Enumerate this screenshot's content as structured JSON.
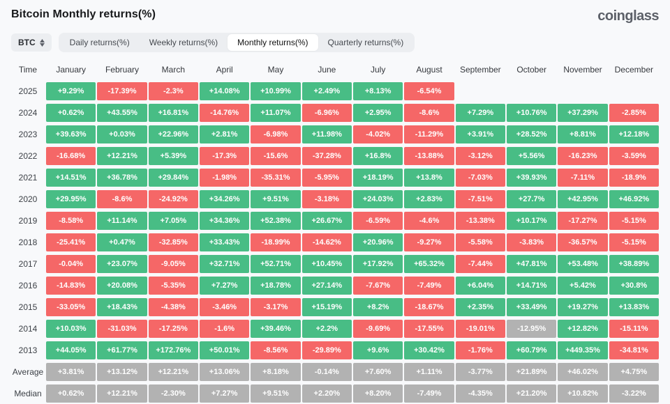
{
  "header": {
    "title": "Bitcoin Monthly returns(%)",
    "logo": "coinglass"
  },
  "toolbar": {
    "symbol_select": "BTC",
    "tabs": [
      {
        "label": "Daily returns(%)",
        "active": false
      },
      {
        "label": "Weekly returns(%)",
        "active": false
      },
      {
        "label": "Monthly returns(%)",
        "active": true
      },
      {
        "label": "Quarterly returns(%)",
        "active": false
      }
    ]
  },
  "colors": {
    "green": "#48bd85",
    "red": "#f56767",
    "gray": "#b2b2b2"
  },
  "chart_data": {
    "type": "heatmap",
    "title": "Bitcoin Monthly returns(%)",
    "columns": [
      "Time",
      "January",
      "February",
      "March",
      "April",
      "May",
      "June",
      "July",
      "August",
      "September",
      "October",
      "November",
      "December"
    ],
    "rows": [
      {
        "label": "2025",
        "values": [
          "+9.29%",
          "-17.39%",
          "-2.3%",
          "+14.08%",
          "+10.99%",
          "+2.49%",
          "+8.13%",
          "-6.54%",
          "",
          "",
          "",
          ""
        ]
      },
      {
        "label": "2024",
        "values": [
          "+0.62%",
          "+43.55%",
          "+16.81%",
          "-14.76%",
          "+11.07%",
          "-6.96%",
          "+2.95%",
          "-8.6%",
          "+7.29%",
          "+10.76%",
          "+37.29%",
          "-2.85%"
        ]
      },
      {
        "label": "2023",
        "values": [
          "+39.63%",
          "+0.03%",
          "+22.96%",
          "+2.81%",
          "-6.98%",
          "+11.98%",
          "-4.02%",
          "-11.29%",
          "+3.91%",
          "+28.52%",
          "+8.81%",
          "+12.18%"
        ]
      },
      {
        "label": "2022",
        "values": [
          "-16.68%",
          "+12.21%",
          "+5.39%",
          "-17.3%",
          "-15.6%",
          "-37.28%",
          "+16.8%",
          "-13.88%",
          "-3.12%",
          "+5.56%",
          "-16.23%",
          "-3.59%"
        ]
      },
      {
        "label": "2021",
        "values": [
          "+14.51%",
          "+36.78%",
          "+29.84%",
          "-1.98%",
          "-35.31%",
          "-5.95%",
          "+18.19%",
          "+13.8%",
          "-7.03%",
          "+39.93%",
          "-7.11%",
          "-18.9%"
        ]
      },
      {
        "label": "2020",
        "values": [
          "+29.95%",
          "-8.6%",
          "-24.92%",
          "+34.26%",
          "+9.51%",
          "-3.18%",
          "+24.03%",
          "+2.83%",
          "-7.51%",
          "+27.7%",
          "+42.95%",
          "+46.92%"
        ]
      },
      {
        "label": "2019",
        "values": [
          "-8.58%",
          "+11.14%",
          "+7.05%",
          "+34.36%",
          "+52.38%",
          "+26.67%",
          "-6.59%",
          "-4.6%",
          "-13.38%",
          "+10.17%",
          "-17.27%",
          "-5.15%"
        ]
      },
      {
        "label": "2018",
        "values": [
          "-25.41%",
          "+0.47%",
          "-32.85%",
          "+33.43%",
          "-18.99%",
          "-14.62%",
          "+20.96%",
          "-9.27%",
          "-5.58%",
          "-3.83%",
          "-36.57%",
          "-5.15%"
        ]
      },
      {
        "label": "2017",
        "values": [
          "-0.04%",
          "+23.07%",
          "-9.05%",
          "+32.71%",
          "+52.71%",
          "+10.45%",
          "+17.92%",
          "+65.32%",
          "-7.44%",
          "+47.81%",
          "+53.48%",
          "+38.89%"
        ]
      },
      {
        "label": "2016",
        "values": [
          "-14.83%",
          "+20.08%",
          "-5.35%",
          "+7.27%",
          "+18.78%",
          "+27.14%",
          "-7.67%",
          "-7.49%",
          "+6.04%",
          "+14.71%",
          "+5.42%",
          "+30.8%"
        ]
      },
      {
        "label": "2015",
        "values": [
          "-33.05%",
          "+18.43%",
          "-4.38%",
          "-3.46%",
          "-3.17%",
          "+15.19%",
          "+8.2%",
          "-18.67%",
          "+2.35%",
          "+33.49%",
          "+19.27%",
          "+13.83%"
        ]
      },
      {
        "label": "2014",
        "values": [
          "+10.03%",
          "-31.03%",
          "-17.25%",
          "-1.6%",
          "+39.46%",
          "+2.2%",
          "-9.69%",
          "-17.55%",
          "-19.01%",
          "-12.95%",
          "+12.82%",
          "-15.11%"
        ]
      },
      {
        "label": "2013",
        "values": [
          "+44.05%",
          "+61.77%",
          "+172.76%",
          "+50.01%",
          "-8.56%",
          "-29.89%",
          "+9.6%",
          "+30.42%",
          "-1.76%",
          "+60.79%",
          "+449.35%",
          "-34.81%"
        ]
      },
      {
        "label": "Average",
        "summary": true,
        "values": [
          "+3.81%",
          "+13.12%",
          "+12.21%",
          "+13.06%",
          "+8.18%",
          "-0.14%",
          "+7.60%",
          "+1.11%",
          "-3.77%",
          "+21.89%",
          "+46.02%",
          "+4.75%"
        ]
      },
      {
        "label": "Median",
        "summary": true,
        "values": [
          "+0.62%",
          "+12.21%",
          "-2.30%",
          "+7.27%",
          "+9.51%",
          "+2.20%",
          "+8.20%",
          "-7.49%",
          "-4.35%",
          "+21.20%",
          "+10.82%",
          "-3.22%"
        ]
      }
    ],
    "overrides": [
      {
        "row": "2014",
        "month": "October",
        "style": "gray"
      }
    ],
    "legend_position": "none",
    "grid": false
  }
}
